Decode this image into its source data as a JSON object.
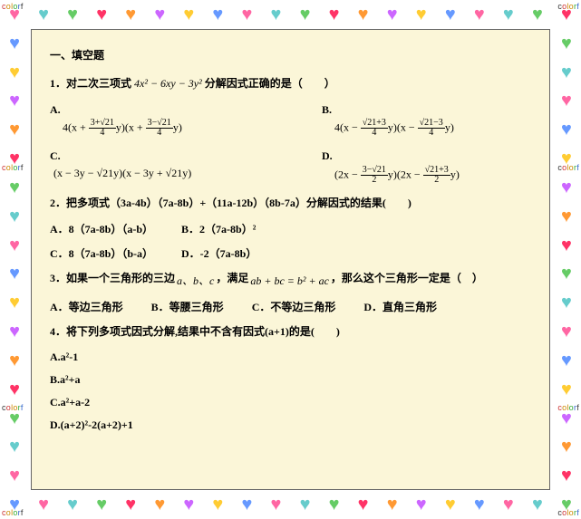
{
  "border": {
    "heart_colors": [
      "#ff66a3",
      "#cc66ff",
      "#66cc66",
      "#6699ff",
      "#ff9933",
      "#66cccc",
      "#ffcc33",
      "#ff3366"
    ],
    "colorful_text": "colorf",
    "colorful_color_sets": [
      [
        "#cc3333",
        "#cc8800",
        "#cc8800",
        "#33aa33",
        "#3366cc",
        "#333333"
      ],
      [
        "#333333",
        "#cc3333",
        "#cc8800",
        "#cc8800",
        "#33aa33",
        "#3366cc"
      ]
    ],
    "bg_behind_hearts": "#ffffff"
  },
  "content": {
    "bg_color": "#fbf6d8",
    "text_color": "#000000",
    "font_family": "SimSun",
    "section_title": "一、填空题",
    "q1": {
      "text_before": "1．对二次三项式 ",
      "expr": "4x² − 6xy − 3y²",
      "text_after": " 分解因式正确的是（　　）",
      "optA": {
        "label": "A.",
        "prefix": "4(x + ",
        "mid1_n": "3+√21",
        "mid1_d": "4",
        "mid1_close": "y)(x + ",
        "mid2_n": "3−√21",
        "mid2_d": "4",
        "suffix": "y)"
      },
      "optB": {
        "label": "B.",
        "prefix": "4(x − ",
        "mid1_n": "√21+3",
        "mid1_d": "4",
        "mid1_close": "y)(x − ",
        "mid2_n": "√21−3",
        "mid2_d": "4",
        "suffix": "y)"
      },
      "optC": {
        "label": "C.",
        "expr": "(x − 3y − √21y)(x − 3y + √21y)"
      },
      "optD": {
        "label": "D.",
        "prefix": "(2x − ",
        "mid1_n": "3−√21",
        "mid1_d": "2",
        "mid1_close": "y)(2x − ",
        "mid2_n": "√21+3",
        "mid2_d": "2",
        "suffix": "y)"
      }
    },
    "q2": {
      "text": "2．把多项式（3a-4b）（7a-8b）+（11a-12b）（8b-7a）分解因式的结果(　　)",
      "optA": "A．8（7a-8b）（a-b）",
      "optB": "B．2（7a-8b）²",
      "optC": "C．8（7a-8b）（b-a）",
      "optD": "D．-2（7a-8b）"
    },
    "q3": {
      "text_before": "3．如果一个三角形的三边",
      "vars": "a、b、c",
      "text_mid": "，满足",
      "eq": "ab + bc = b² + ac",
      "text_after": "，那么这个三角形一定是（　）",
      "optA": "A．等边三角形",
      "optB": "B．等腰三角形",
      "optC": "C．不等边三角形",
      "optD": "D．直角三角形"
    },
    "q4": {
      "text": "4．将下列多项式因式分解,结果中不含有因式(a+1)的是(　　)",
      "optA": "A.a²-1",
      "optB": "B.a²+a",
      "optC": "C.a²+a-2",
      "optD": "D.(a+2)²-2(a+2)+1"
    }
  }
}
